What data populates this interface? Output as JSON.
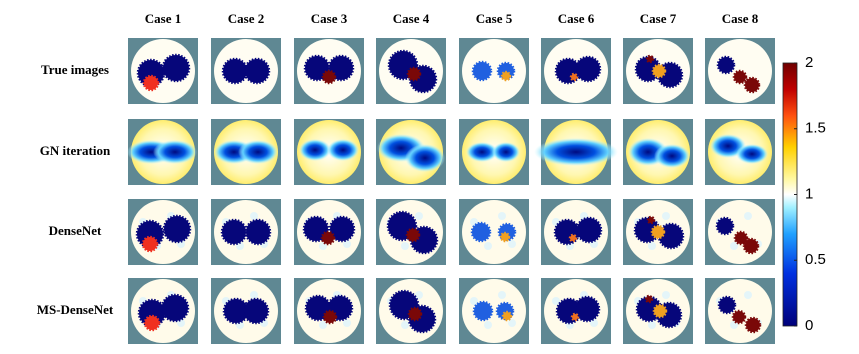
{
  "columns": [
    "Case 1",
    "Case 2",
    "Case 3",
    "Case 4",
    "Case 5",
    "Case 6",
    "Case 7",
    "Case 8"
  ],
  "rows": [
    "True images",
    "GN iteration",
    "DenseNet",
    "MS-DenseNet"
  ],
  "colorbar": {
    "lim": [
      0,
      2
    ],
    "ticks": [
      0,
      0.5,
      1,
      1.5,
      2
    ]
  }
}
